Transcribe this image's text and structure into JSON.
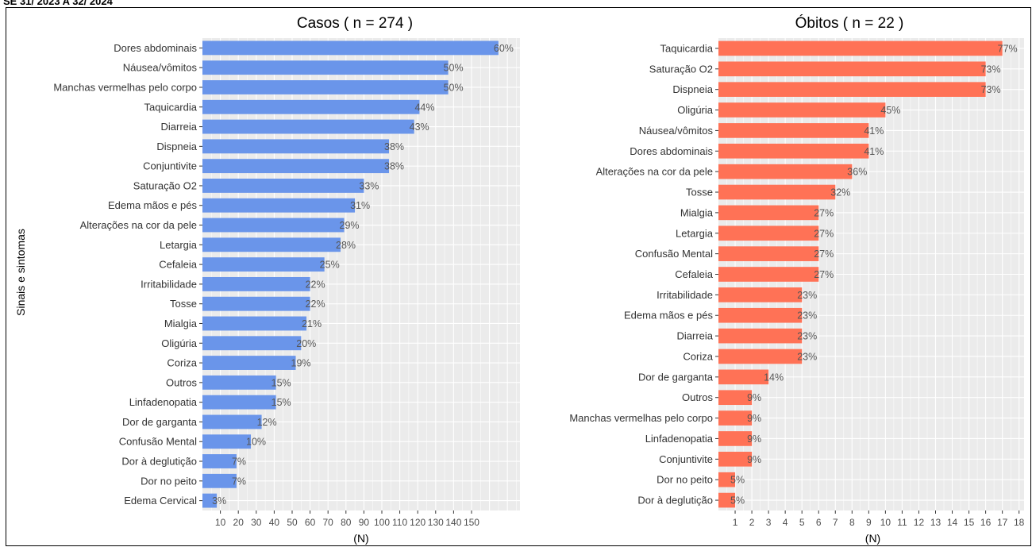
{
  "caption": "SE 31/ 2023 A 32/ 2024",
  "y_axis_label": "Sinais e sintomas",
  "chart_data": [
    {
      "type": "bar",
      "orientation": "horizontal",
      "title": "Casos ( n =  274 )",
      "xlabel": "(N)",
      "color": "#6A95EA",
      "xticks": [
        "10",
        "20",
        "30",
        "40",
        "50",
        "60",
        "70",
        "80",
        "90",
        "100",
        "110",
        "120",
        "130",
        "140",
        "150"
      ],
      "xlim": [
        0,
        177
      ],
      "categories": [
        "Dores abdominais",
        "Náusea/vômitos",
        "Manchas vermelhas pelo corpo",
        "Taquicardia",
        "Diarreia",
        "Dispneia",
        "Conjuntivite",
        "Saturação O2",
        "Edema mãos e pés",
        "Alterações na cor da pele",
        "Letargia",
        "Cefaleia",
        "Irritabilidade",
        "Tosse",
        "Mialgia",
        "Oligúria",
        "Coriza",
        "Outros",
        "Linfadenopatia",
        "Dor de garganta",
        "Confusão Mental",
        "Dor à deglutição",
        "Dor no peito",
        "Edema Cervical"
      ],
      "values": [
        165,
        137,
        137,
        121,
        118,
        104,
        104,
        90,
        85,
        79,
        77,
        68,
        60,
        60,
        58,
        55,
        52,
        41,
        41,
        33,
        27,
        19,
        19,
        8
      ],
      "labels": [
        "60%",
        "50%",
        "50%",
        "44%",
        "43%",
        "38%",
        "38%",
        "33%",
        "31%",
        "29%",
        "28%",
        "25%",
        "22%",
        "22%",
        "21%",
        "20%",
        "19%",
        "15%",
        "15%",
        "12%",
        "10%",
        "7%",
        "7%",
        "3%"
      ]
    },
    {
      "type": "bar",
      "orientation": "horizontal",
      "title": "Óbitos ( n =  22 )",
      "xlabel": "(N)",
      "color": "#FF7256",
      "xticks": [
        "1",
        "2",
        "3",
        "4",
        "5",
        "6",
        "7",
        "8",
        "9",
        "10",
        "11",
        "12",
        "13",
        "14",
        "15",
        "16",
        "17",
        "18"
      ],
      "xlim": [
        0,
        18.3
      ],
      "categories": [
        "Taquicardia",
        "Saturação O2",
        "Dispneia",
        "Oligúria",
        "Náusea/vômitos",
        "Dores abdominais",
        "Alterações na cor da pele",
        "Tosse",
        "Mialgia",
        "Letargia",
        "Confusão Mental",
        "Cefaleia",
        "Irritabilidade",
        "Edema mãos e pés",
        "Diarreia",
        "Coriza",
        "Dor de garganta",
        "Outros",
        "Manchas vermelhas pelo corpo",
        "Linfadenopatia",
        "Conjuntivite",
        "Dor no peito",
        "Dor à deglutição"
      ],
      "values": [
        17,
        16,
        16,
        10,
        9,
        9,
        8,
        7,
        6,
        6,
        6,
        6,
        5,
        5,
        5,
        5,
        3,
        2,
        2,
        2,
        2,
        1,
        1
      ],
      "labels": [
        "77%",
        "73%",
        "73%",
        "45%",
        "41%",
        "41%",
        "36%",
        "32%",
        "27%",
        "27%",
        "27%",
        "27%",
        "23%",
        "23%",
        "23%",
        "23%",
        "14%",
        "9%",
        "9%",
        "9%",
        "9%",
        "5%",
        "5%"
      ]
    }
  ]
}
